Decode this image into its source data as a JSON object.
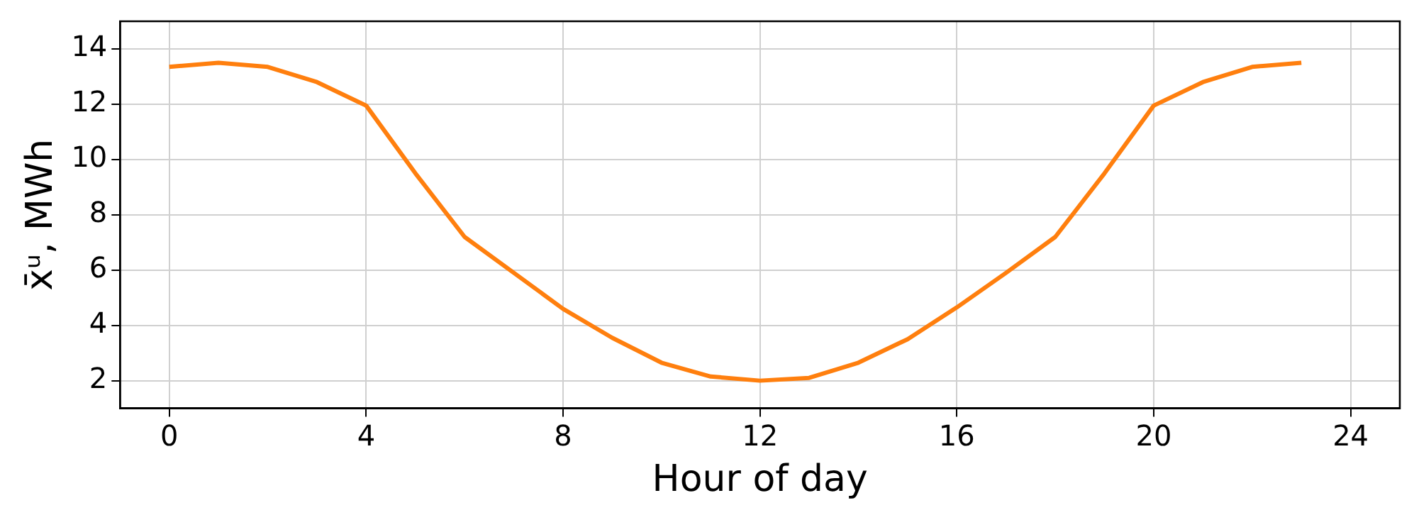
{
  "chart_data": {
    "type": "line",
    "xlabel": "Hour of day",
    "ylabel": "x̄ᵘ, MWh",
    "x": [
      0,
      1,
      2,
      3,
      4,
      5,
      6,
      7,
      8,
      9,
      10,
      11,
      12,
      13,
      14,
      15,
      16,
      17,
      18,
      19,
      20,
      21,
      22,
      23
    ],
    "series": [
      {
        "color": "#ff7f0e",
        "values": [
          13.35,
          13.5,
          13.35,
          12.8,
          11.95,
          9.5,
          7.2,
          5.9,
          4.6,
          3.55,
          2.65,
          2.15,
          2.0,
          2.1,
          2.65,
          3.5,
          4.65,
          5.9,
          7.2,
          9.5,
          11.95,
          12.8,
          13.35,
          13.5
        ]
      }
    ],
    "xlim": [
      -1,
      25
    ],
    "xticks": [
      0,
      4,
      8,
      12,
      16,
      20,
      24
    ],
    "ylim": [
      1,
      15
    ],
    "yticks": [
      2,
      4,
      6,
      8,
      10,
      12,
      14
    ],
    "grid": true,
    "legend": false,
    "marker": "none",
    "line_style": "solid"
  }
}
